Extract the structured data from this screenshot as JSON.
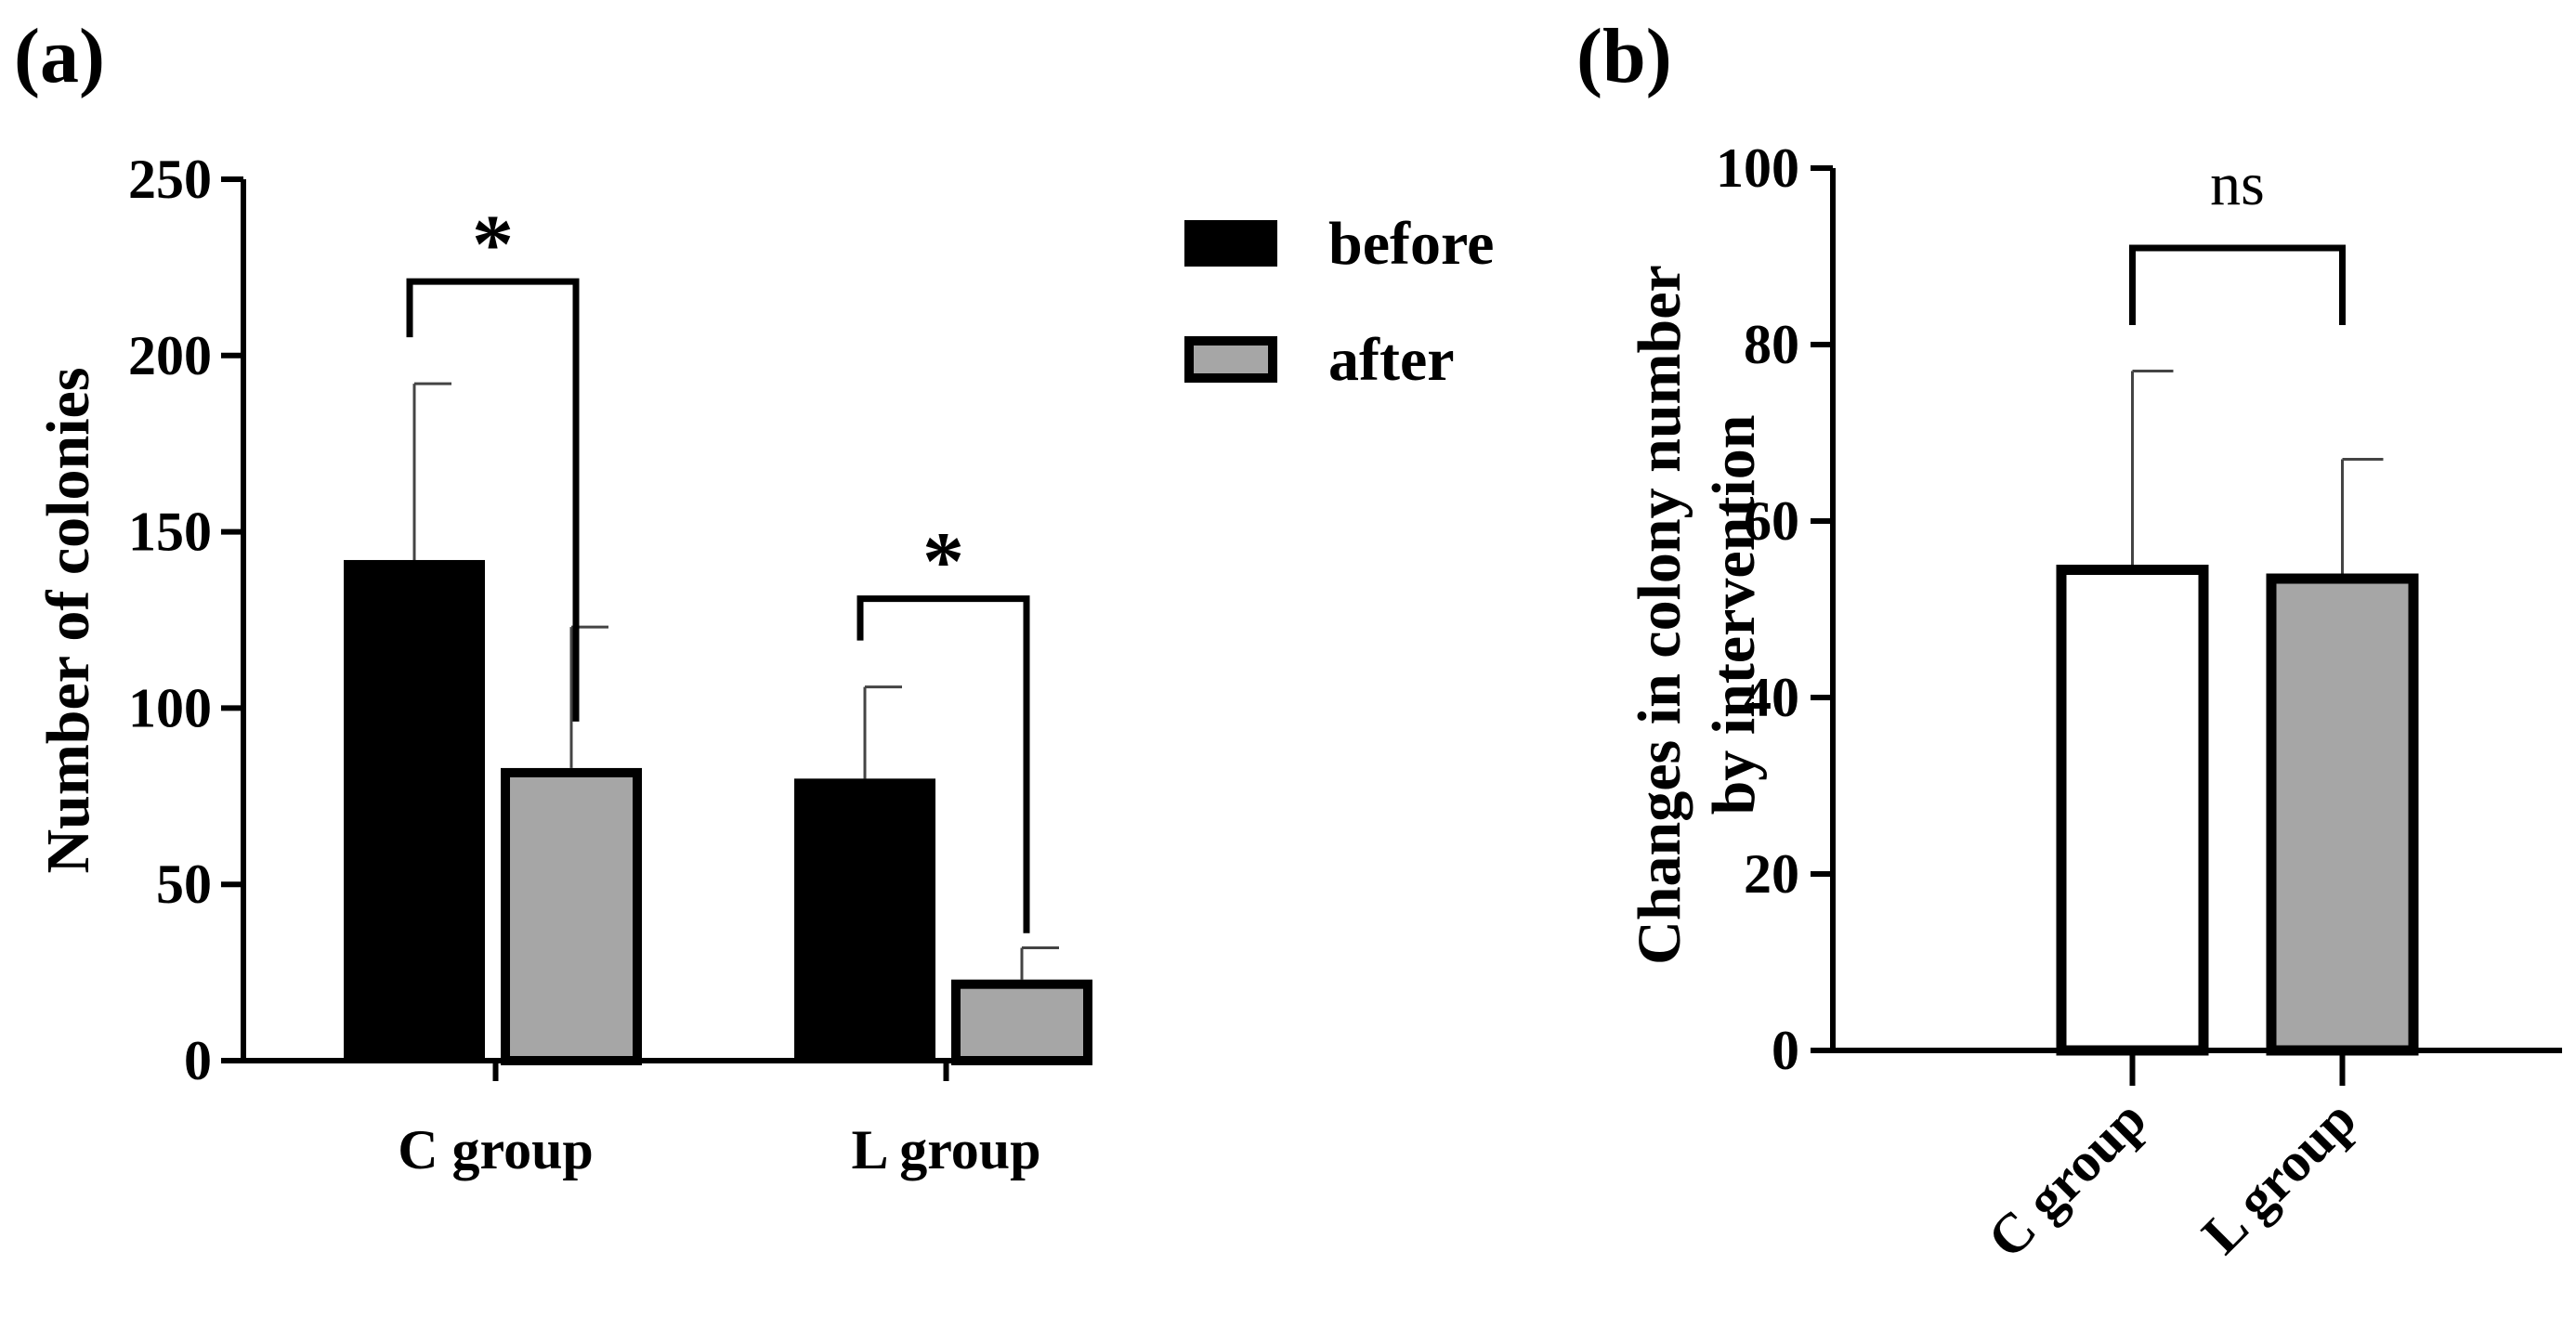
{
  "chart_data": [
    {
      "panel": "(a)",
      "type": "bar",
      "categories": [
        "C group",
        "L group"
      ],
      "series": [
        {
          "name": "before",
          "values": [
            142,
            80
          ],
          "errors": [
            50,
            26
          ],
          "color": "#000000"
        },
        {
          "name": "after",
          "values": [
            83,
            23
          ],
          "errors": [
            40,
            9
          ],
          "color": "#a6a6a6"
        }
      ],
      "ylabel": "Number of colonies",
      "xlabel": "",
      "ylim": [
        0,
        250
      ],
      "yticks": [
        "0",
        "50",
        "100",
        "150",
        "200",
        "250"
      ],
      "legend": {
        "position": "top-right",
        "entries": [
          "before",
          "after"
        ]
      },
      "annotations": [
        {
          "label": "*",
          "category": "C group",
          "between": [
            "before",
            "after"
          ]
        },
        {
          "label": "*",
          "category": "L group",
          "between": [
            "before",
            "after"
          ]
        }
      ]
    },
    {
      "panel": "(b)",
      "type": "bar",
      "categories": [
        "C group",
        "L group"
      ],
      "values": [
        55,
        54
      ],
      "errors": [
        22,
        13
      ],
      "colors": [
        "#ffffff",
        "#a6a6a6"
      ],
      "ylabel_lines": [
        "Changes in colony number",
        "by intervention"
      ],
      "xlabel": "",
      "ylim": [
        0,
        100
      ],
      "yticks": [
        "0",
        "20",
        "40",
        "60",
        "80",
        "100"
      ],
      "annotations": [
        {
          "label": "ns",
          "between": [
            "C group",
            "L group"
          ]
        }
      ]
    }
  ]
}
